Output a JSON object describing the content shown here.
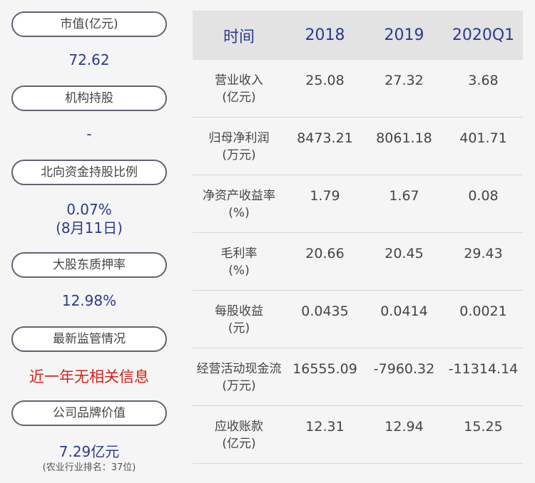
{
  "left": {
    "market_cap_label": "市值(亿元)",
    "market_cap_value": "72.62",
    "institution_label": "机构持股",
    "institution_value": "-",
    "northbound_label": "北向资金持股比例",
    "northbound_value": "0.07%",
    "northbound_date": "(8月11日)",
    "pledge_label": "大股东质押率",
    "pledge_value": "12.98%",
    "regulatory_label": "最新监管情况",
    "regulatory_value": "近一年无相关信息",
    "brand_label": "公司品牌价值",
    "brand_value": "7.29亿元",
    "brand_rank": "(农业行业排名：37位)"
  },
  "table": {
    "headers": [
      "时间",
      "2018",
      "2019",
      "2020Q1"
    ],
    "rows": [
      {
        "label1": "营业收入",
        "label2": "(亿元)",
        "values": [
          "25.08",
          "27.32",
          "3.68"
        ]
      },
      {
        "label1": "归母净利润",
        "label2": "(万元)",
        "values": [
          "8473.21",
          "8061.18",
          "401.71"
        ]
      },
      {
        "label1": "净资产收益率",
        "label2": "(%)",
        "values": [
          "1.79",
          "1.67",
          "0.08"
        ]
      },
      {
        "label1": "毛利率",
        "label2": "(%)",
        "values": [
          "20.66",
          "20.45",
          "29.43"
        ]
      },
      {
        "label1": "每股收益",
        "label2": "(元)",
        "values": [
          "0.0435",
          "0.0414",
          "0.0021"
        ]
      },
      {
        "label1": "经营活动现金流",
        "label2": "(万元)",
        "values": [
          "16555.09",
          "-7960.32",
          "-11314.14"
        ]
      },
      {
        "label1": "应收账款",
        "label2": "(亿元)",
        "values": [
          "12.31",
          "12.94",
          "15.25"
        ]
      }
    ]
  }
}
